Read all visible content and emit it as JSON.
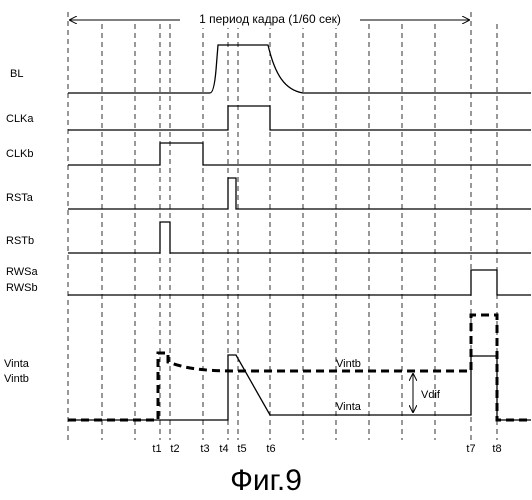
{
  "period": {
    "label": "1 период кадра (1/60 сек)"
  },
  "signals": [
    {
      "id": "bl",
      "label": "BL"
    },
    {
      "id": "clka",
      "label": "CLKa"
    },
    {
      "id": "clkb",
      "label": "CLKb"
    },
    {
      "id": "rsta",
      "label": "RSTa"
    },
    {
      "id": "rstb",
      "label": "RSTb"
    },
    {
      "id": "rwsa",
      "label": "RWSa"
    },
    {
      "id": "rwsb",
      "label": "RWSb"
    },
    {
      "id": "vinta",
      "label": "Vinta"
    },
    {
      "id": "vintb",
      "label": "Vintb"
    }
  ],
  "annotations": {
    "vintb_curve": "Vintb",
    "vinta_curve": "Vinta",
    "vdif": "Vdif"
  },
  "time_markers": [
    "t1",
    "t2",
    "t3",
    "t4",
    "t5",
    "t6",
    "t7",
    "t8"
  ],
  "caption": "Фиг.9"
}
